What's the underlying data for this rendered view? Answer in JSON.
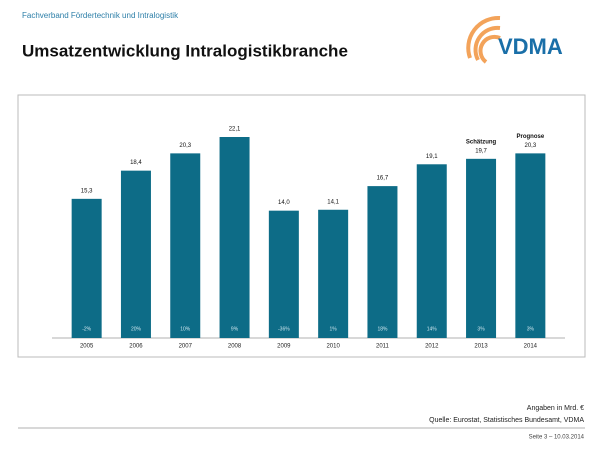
{
  "header": {
    "organization": "Fachverband Fördertechnik und Intralogistik",
    "logo": "VDMA"
  },
  "chart_data": {
    "type": "bar",
    "title": "Umsatzentwicklung Intralogistikbranche",
    "categories": [
      "2005",
      "2006",
      "2007",
      "2008",
      "2009",
      "2010",
      "2011",
      "2012",
      "2013",
      "2014"
    ],
    "values": [
      15.3,
      18.4,
      20.3,
      22.1,
      14.0,
      14.1,
      16.7,
      19.1,
      19.7,
      20.3
    ],
    "value_labels": [
      "15,3",
      "18,4",
      "20,3",
      "22,1",
      "14,0",
      "14,1",
      "16,7",
      "19,1",
      "19,7",
      "20,3"
    ],
    "growth_labels": [
      "-2%",
      "20%",
      "10%",
      "9%",
      "-36%",
      "1%",
      "18%",
      "14%",
      "3%",
      "3%"
    ],
    "bar_notes": [
      null,
      null,
      null,
      null,
      null,
      null,
      null,
      null,
      "Schätzung",
      "Prognose"
    ],
    "color": "#0d6c87"
  },
  "footer": {
    "unit": "Angaben in Mrd. €",
    "source": "Quelle: Eurostat, Statistisches Bundesamt, VDMA",
    "page": "Seite 3 – 10.03.2014"
  }
}
